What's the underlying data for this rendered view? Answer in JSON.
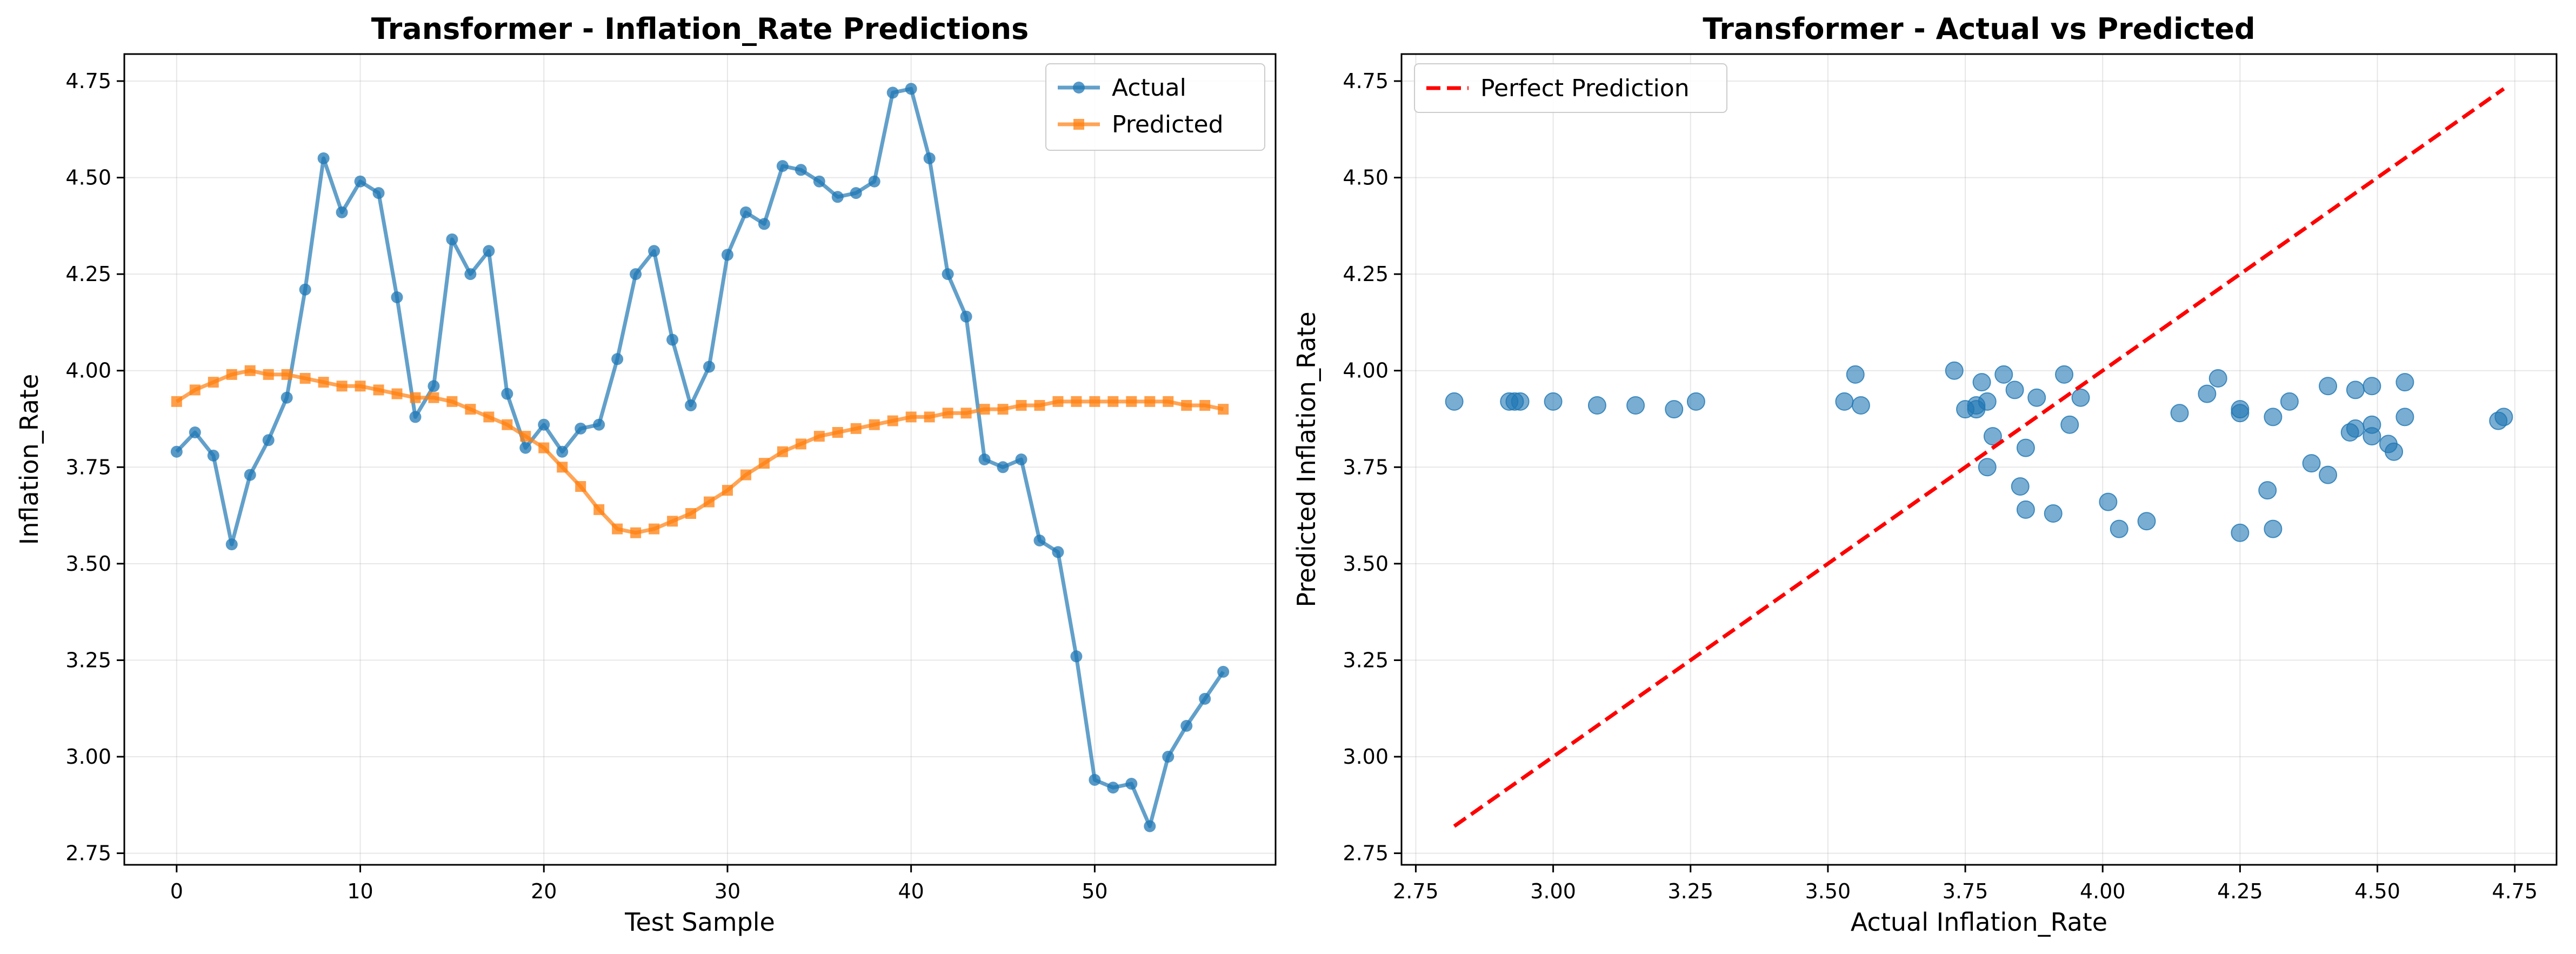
{
  "chart_data": [
    {
      "type": "line",
      "title": "Transformer - Inflation_Rate Predictions",
      "xlabel": "Test Sample",
      "ylabel": "Inflation_Rate",
      "xlim": [
        -2.85,
        59.85
      ],
      "ylim": [
        2.72,
        4.82
      ],
      "xticks": [
        0,
        10,
        20,
        30,
        40,
        50
      ],
      "yticks": [
        2.75,
        3.0,
        3.25,
        3.5,
        3.75,
        4.0,
        4.25,
        4.5,
        4.75
      ],
      "grid": true,
      "legend": "top-right",
      "series": [
        {
          "name": "Actual",
          "color": "#1f77b4",
          "marker": "circle",
          "x": [
            0,
            1,
            2,
            3,
            4,
            5,
            6,
            7,
            8,
            9,
            10,
            11,
            12,
            13,
            14,
            15,
            16,
            17,
            18,
            19,
            20,
            21,
            22,
            23,
            24,
            25,
            26,
            27,
            28,
            29,
            30,
            31,
            32,
            33,
            34,
            35,
            36,
            37,
            38,
            39,
            40,
            41,
            42,
            43,
            44,
            45,
            46,
            47,
            48,
            49,
            50,
            51,
            52,
            53,
            54,
            55,
            56,
            57
          ],
          "values": [
            3.79,
            3.84,
            3.78,
            3.55,
            3.73,
            3.82,
            3.93,
            4.21,
            4.55,
            4.41,
            4.49,
            4.46,
            4.19,
            3.88,
            3.96,
            4.34,
            4.25,
            4.31,
            3.94,
            3.8,
            3.86,
            3.79,
            3.85,
            3.86,
            4.03,
            4.25,
            4.31,
            4.08,
            3.91,
            4.01,
            4.3,
            4.41,
            4.38,
            4.53,
            4.52,
            4.49,
            4.45,
            4.46,
            4.49,
            4.72,
            4.73,
            4.55,
            4.25,
            4.14,
            3.77,
            3.75,
            3.77,
            3.56,
            3.53,
            3.26,
            2.94,
            2.92,
            2.93,
            2.82,
            3.0,
            3.08,
            3.15,
            3.22
          ]
        },
        {
          "name": "Predicted",
          "color": "#ff7f0e",
          "marker": "square",
          "x": [
            0,
            1,
            2,
            3,
            4,
            5,
            6,
            7,
            8,
            9,
            10,
            11,
            12,
            13,
            14,
            15,
            16,
            17,
            18,
            19,
            20,
            21,
            22,
            23,
            24,
            25,
            26,
            27,
            28,
            29,
            30,
            31,
            32,
            33,
            34,
            35,
            36,
            37,
            38,
            39,
            40,
            41,
            42,
            43,
            44,
            45,
            46,
            47,
            48,
            49,
            50,
            51,
            52,
            53,
            54,
            55,
            56,
            57
          ],
          "values": [
            3.92,
            3.95,
            3.97,
            3.99,
            4.0,
            3.99,
            3.99,
            3.98,
            3.97,
            3.96,
            3.96,
            3.95,
            3.94,
            3.93,
            3.93,
            3.92,
            3.9,
            3.88,
            3.86,
            3.83,
            3.8,
            3.75,
            3.7,
            3.64,
            3.59,
            3.58,
            3.59,
            3.61,
            3.63,
            3.66,
            3.69,
            3.73,
            3.76,
            3.79,
            3.81,
            3.83,
            3.84,
            3.85,
            3.86,
            3.87,
            3.88,
            3.88,
            3.89,
            3.89,
            3.9,
            3.9,
            3.91,
            3.91,
            3.92,
            3.92,
            3.92,
            3.92,
            3.92,
            3.92,
            3.92,
            3.91,
            3.91,
            3.9
          ]
        }
      ]
    },
    {
      "type": "scatter",
      "title": "Transformer - Actual vs Predicted",
      "xlabel": "Actual Inflation_Rate",
      "ylabel": "Predicted Inflation_Rate",
      "xlim": [
        2.724,
        4.826
      ],
      "ylim": [
        2.72,
        4.82
      ],
      "xticks": [
        2.75,
        3.0,
        3.25,
        3.5,
        3.75,
        4.0,
        4.25,
        4.5,
        4.75
      ],
      "yticks": [
        2.75,
        3.0,
        3.25,
        3.5,
        3.75,
        4.0,
        4.25,
        4.5,
        4.75
      ],
      "grid": true,
      "legend": "top-left",
      "reference_line": {
        "name": "Perfect Prediction",
        "color": "#ff0000",
        "from": [
          2.82,
          2.82
        ],
        "to": [
          4.73,
          4.73
        ]
      },
      "points": {
        "color": "#1f77b4",
        "x": [
          3.79,
          3.84,
          3.78,
          3.55,
          3.73,
          3.82,
          3.93,
          4.21,
          4.55,
          4.41,
          4.49,
          4.46,
          4.19,
          3.88,
          3.96,
          4.34,
          4.25,
          4.31,
          3.94,
          3.8,
          3.86,
          3.79,
          3.85,
          3.86,
          4.03,
          4.25,
          4.31,
          4.08,
          3.91,
          4.01,
          4.3,
          4.41,
          4.38,
          4.53,
          4.52,
          4.49,
          4.45,
          4.46,
          4.49,
          4.72,
          4.73,
          4.55,
          4.25,
          4.14,
          3.77,
          3.75,
          3.77,
          3.56,
          3.53,
          3.26,
          2.94,
          2.92,
          2.93,
          2.82,
          3.0,
          3.08,
          3.15,
          3.22
        ],
        "y": [
          3.92,
          3.95,
          3.97,
          3.99,
          4.0,
          3.99,
          3.99,
          3.98,
          3.97,
          3.96,
          3.96,
          3.95,
          3.94,
          3.93,
          3.93,
          3.92,
          3.9,
          3.88,
          3.86,
          3.83,
          3.8,
          3.75,
          3.7,
          3.64,
          3.59,
          3.58,
          3.59,
          3.61,
          3.63,
          3.66,
          3.69,
          3.73,
          3.76,
          3.79,
          3.81,
          3.83,
          3.84,
          3.85,
          3.86,
          3.87,
          3.88,
          3.88,
          3.89,
          3.89,
          3.9,
          3.9,
          3.91,
          3.91,
          3.92,
          3.92,
          3.92,
          3.92,
          3.92,
          3.92,
          3.92,
          3.91,
          3.91,
          3.9
        ]
      }
    }
  ],
  "tick_format": {
    "x_left": "integer",
    "x_right": "2dp",
    "y": "2dp"
  }
}
